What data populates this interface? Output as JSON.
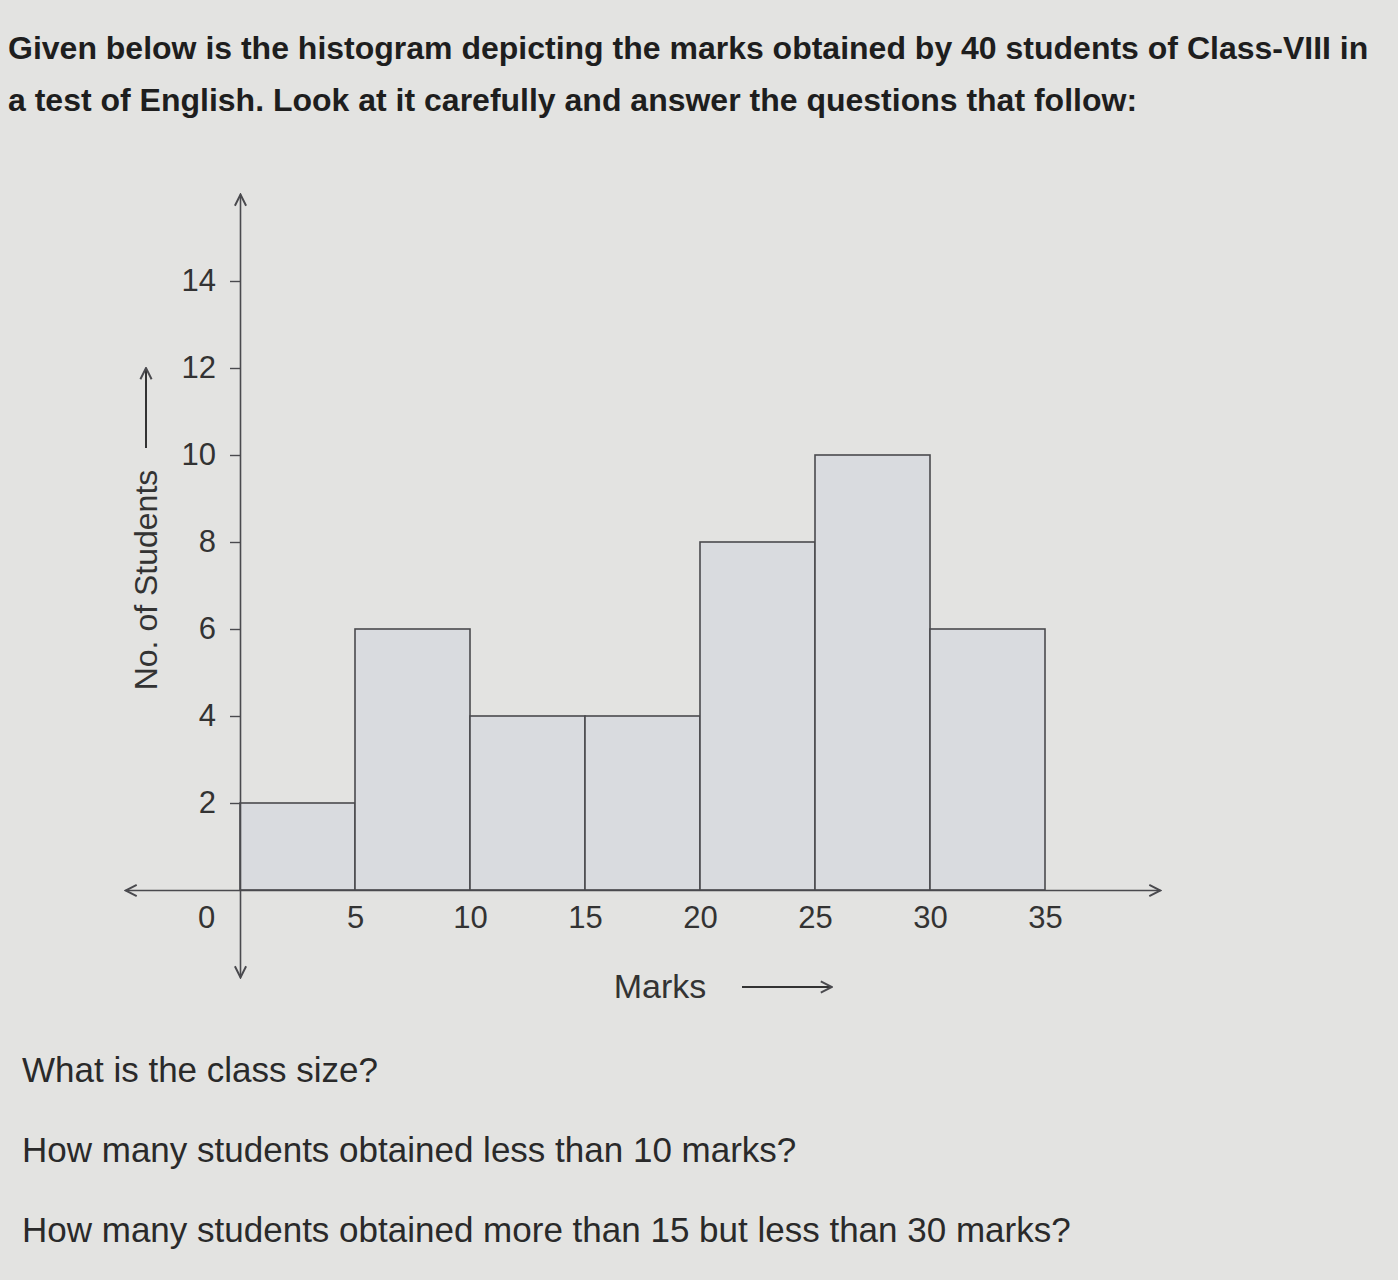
{
  "chart_data": {
    "type": "histogram",
    "title": "Given below is the histogram depicting the marks obtained by 40 students of Class-VIII in a test of English. Look at it carefully and answer the questions that follow:",
    "x_label": "Marks",
    "y_label": "No. of Students",
    "bins": [
      0,
      5,
      10,
      15,
      20,
      25,
      30,
      35
    ],
    "values": [
      2,
      6,
      4,
      4,
      8,
      10,
      6
    ],
    "color": "#d9dbdf",
    "xlim": [
      -5,
      40
    ],
    "ylim": [
      -2,
      16
    ],
    "xticks": [
      0,
      5,
      10,
      15,
      20,
      25,
      30,
      35
    ],
    "yticks": [
      2,
      4,
      6,
      8,
      10,
      12,
      14
    ],
    "grid": false,
    "annotations": [
      "What is the class size?",
      "How many students obtained less than 10 marks?",
      "How many students obtained more than 15 but less than 30 marks?"
    ]
  }
}
